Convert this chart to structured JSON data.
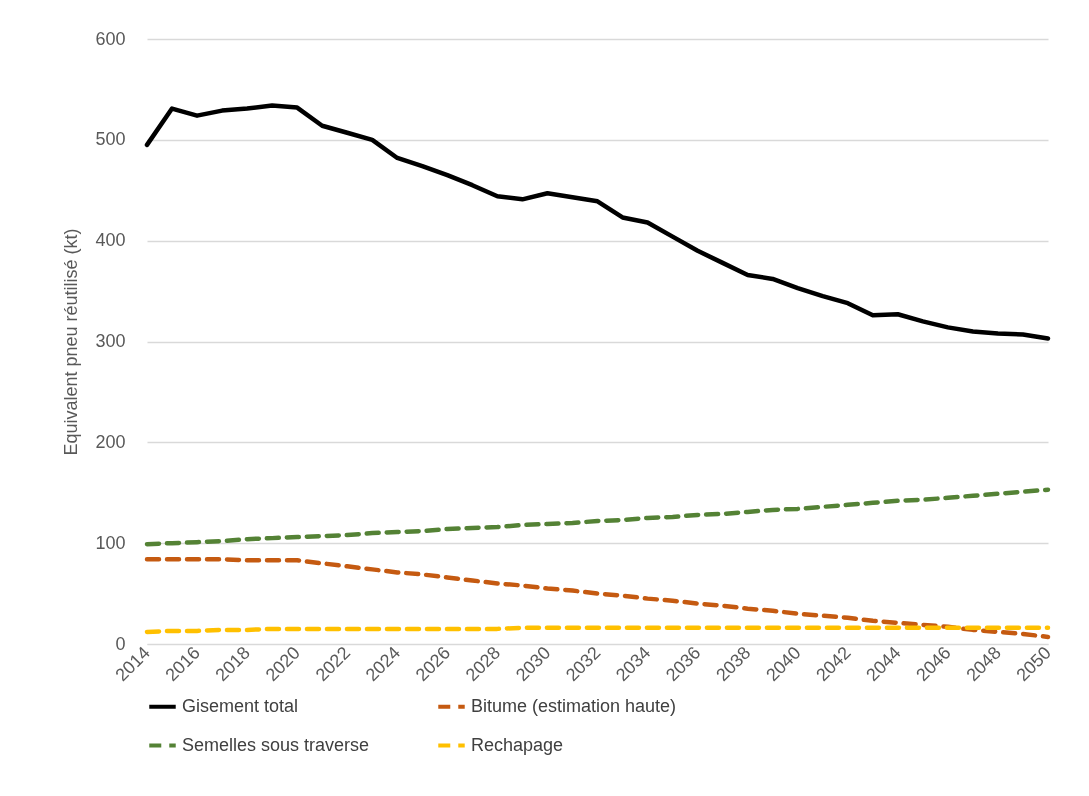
{
  "chart_data": {
    "type": "line",
    "ylabel": "Equivalent pneu réutilisé (kt)",
    "x": [
      2014,
      2015,
      2016,
      2017,
      2018,
      2019,
      2020,
      2021,
      2022,
      2023,
      2024,
      2025,
      2026,
      2027,
      2028,
      2029,
      2030,
      2031,
      2032,
      2033,
      2034,
      2035,
      2036,
      2037,
      2038,
      2039,
      2040,
      2041,
      2042,
      2043,
      2044,
      2045,
      2046,
      2047,
      2048,
      2049,
      2050
    ],
    "xlim": [
      2014,
      2050
    ],
    "xticks": [
      2014,
      2016,
      2018,
      2020,
      2022,
      2024,
      2026,
      2028,
      2030,
      2032,
      2034,
      2036,
      2038,
      2040,
      2042,
      2044,
      2046,
      2048,
      2050
    ],
    "ylim": [
      0,
      600
    ],
    "yticks": [
      0,
      100,
      200,
      300,
      400,
      500,
      600
    ],
    "grid": "y",
    "legend": "bottom",
    "marker": "none",
    "series": [
      {
        "name": "Gisement total",
        "color": "#000000",
        "line_style": "solid",
        "values": [
          495,
          531,
          524,
          529,
          531,
          534,
          532,
          514,
          507,
          500,
          482,
          474,
          465,
          455,
          444,
          441,
          447,
          443,
          439,
          423,
          418,
          404,
          390,
          378,
          366,
          362,
          353,
          345,
          338,
          326,
          327,
          320,
          314,
          310,
          308,
          307,
          303
        ]
      },
      {
        "name": "Bitume (estimation haute)",
        "color": "#c55a11",
        "line_style": "dashed",
        "values": [
          84,
          84,
          84,
          84,
          83,
          83,
          83,
          80,
          77,
          74,
          71,
          69,
          66,
          63,
          60,
          58,
          55,
          53,
          50,
          48,
          45,
          43,
          40,
          38,
          35,
          33,
          30,
          28,
          26,
          23,
          21,
          19,
          17,
          14,
          12,
          10,
          7
        ]
      },
      {
        "name": "Semelles sous traverse",
        "color": "#548235",
        "line_style": "dashed",
        "values": [
          99,
          100,
          101,
          102,
          104,
          105,
          106,
          107,
          108,
          110,
          111,
          112,
          114,
          115,
          116,
          118,
          119,
          120,
          122,
          123,
          125,
          126,
          128,
          129,
          131,
          133,
          134,
          136,
          138,
          140,
          142,
          143,
          145,
          147,
          149,
          151,
          153
        ]
      },
      {
        "name": "Rechapage",
        "color": "#ffc000",
        "line_style": "dashed",
        "values": [
          12,
          13,
          13,
          14,
          14,
          15,
          15,
          15,
          15,
          15,
          15,
          15,
          15,
          15,
          15,
          16,
          16,
          16,
          16,
          16,
          16,
          16,
          16,
          16,
          16,
          16,
          16,
          16,
          16,
          16,
          16,
          16,
          16,
          16,
          16,
          16,
          16
        ]
      }
    ]
  }
}
